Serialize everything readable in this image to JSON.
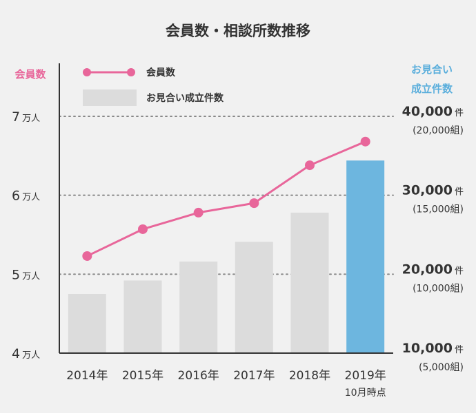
{
  "colors": {
    "line": "#e8669a",
    "bar": "#dcdcdc",
    "bar_highlight": "#6db6df",
    "left_axis_title": "#e8669a",
    "right_axis_title": "#5aaedc",
    "grid": "#888888"
  },
  "chart_data": {
    "type": "bar",
    "title": "会員数・相談所数推移",
    "left_axis_title": "会員数",
    "right_axis_title_line1": "お見合い",
    "right_axis_title_line2": "成立件数",
    "legend": {
      "line_label": "会員数",
      "bar_label": "お見合い成立件数",
      "position": "top-left"
    },
    "categories": [
      {
        "main": "2014年",
        "sub": ""
      },
      {
        "main": "2015年",
        "sub": ""
      },
      {
        "main": "2016年",
        "sub": ""
      },
      {
        "main": "2017年",
        "sub": ""
      },
      {
        "main": "2018年",
        "sub": ""
      },
      {
        "main": "2019年",
        "sub": "10月時点"
      }
    ],
    "left_axis": {
      "ylim": [
        40000,
        70000
      ],
      "ticks": [
        {
          "value": 70000,
          "num": "7",
          "unit": "万人"
        },
        {
          "value": 60000,
          "num": "6",
          "unit": "万人"
        },
        {
          "value": 50000,
          "num": "5",
          "unit": "万人"
        },
        {
          "value": 40000,
          "num": "4",
          "unit": "万人"
        }
      ]
    },
    "right_axis": {
      "ylim": [
        10000,
        40000
      ],
      "ticks": [
        {
          "value": 40000,
          "num": "40,000",
          "unit": "件",
          "sub": "(20,000組)"
        },
        {
          "value": 30000,
          "num": "30,000",
          "unit": "件",
          "sub": "(15,000組)"
        },
        {
          "value": 20000,
          "num": "20,000",
          "unit": "件",
          "sub": "(10,000組)"
        },
        {
          "value": 10000,
          "num": "10,000",
          "unit": "件",
          "sub": "(5,000組)"
        }
      ]
    },
    "series": [
      {
        "name": "会員数",
        "kind": "line",
        "axis": "left",
        "values": [
          52300,
          55700,
          57800,
          59000,
          63800,
          66800
        ]
      },
      {
        "name": "お見合い成立件数",
        "kind": "bar",
        "axis": "right",
        "values": [
          17500,
          19200,
          21600,
          24100,
          27800,
          34400
        ],
        "highlight_index": 5
      }
    ],
    "grid": true
  }
}
